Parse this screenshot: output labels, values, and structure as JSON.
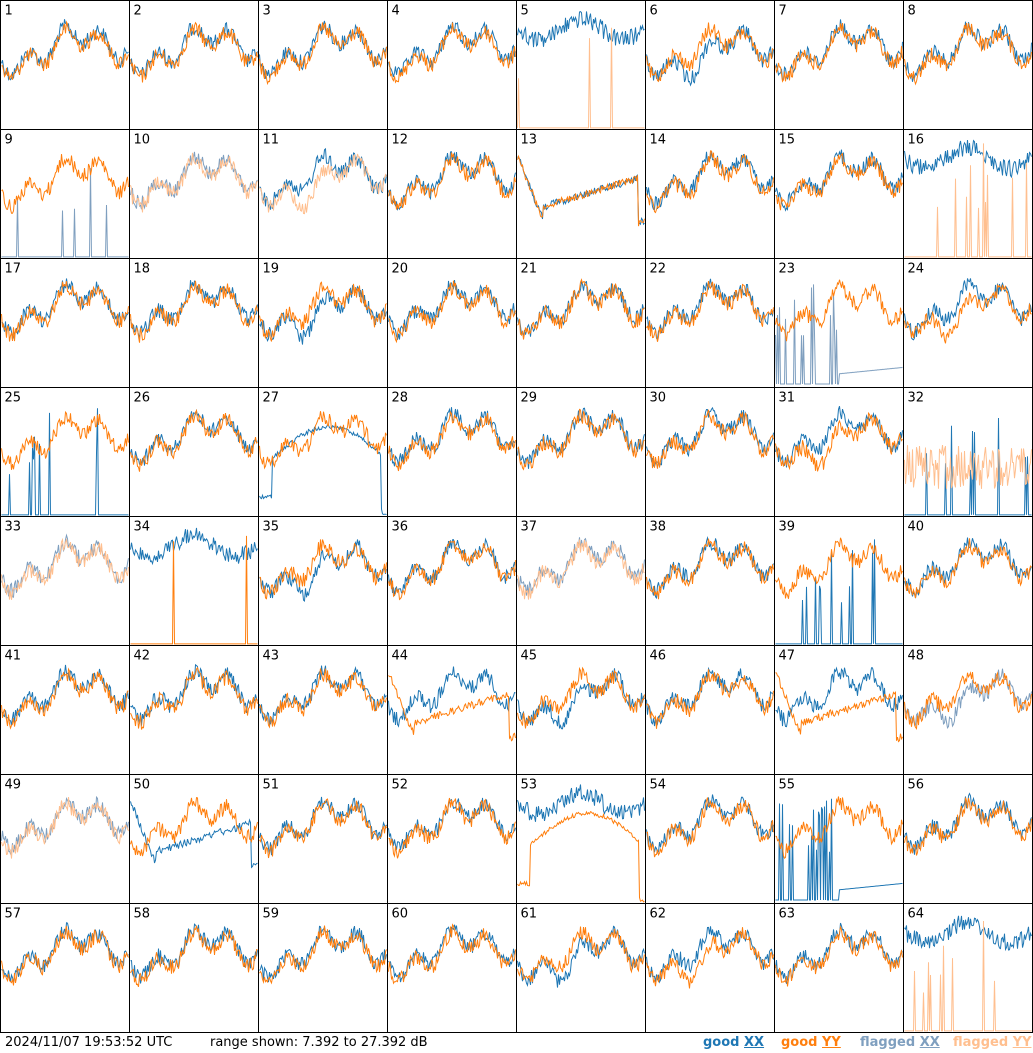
{
  "footer": {
    "timestamp": "2024/11/07 19:53:52 UTC",
    "range_text": "range shown: 7.392 to 27.392 dB"
  },
  "legend": [
    {
      "key": "good_xx",
      "word": "good",
      "pol": "XX",
      "color": "#1f77b4"
    },
    {
      "key": "good_yy",
      "word": "good",
      "pol": "YY",
      "color": "#ff7f0e"
    },
    {
      "key": "flagged_xx",
      "word": "flagged",
      "pol": "XX",
      "color": "#7f9fbf"
    },
    {
      "key": "flagged_yy",
      "word": "flagged",
      "pol": "YY",
      "color": "#ffbf8f"
    }
  ],
  "colors": {
    "good_xx": "#1f77b4",
    "good_yy": "#ff7f0e",
    "flagged_xx": "#7f9fbf",
    "flagged_yy": "#ffbf8f"
  },
  "chart_data": {
    "type": "line",
    "grid": {
      "rows": 8,
      "cols": 8
    },
    "ylim": [
      7.392,
      27.392
    ],
    "y_unit": "dB",
    "panels": [
      {
        "id": 1,
        "xx": "good",
        "yy": "good",
        "xx_shape": "normal",
        "yy_shape": "normal"
      },
      {
        "id": 2,
        "xx": "good",
        "yy": "good",
        "xx_shape": "normal",
        "yy_shape": "normal"
      },
      {
        "id": 3,
        "xx": "good",
        "yy": "good",
        "xx_shape": "normal",
        "yy_shape": "normal"
      },
      {
        "id": 4,
        "xx": "good",
        "yy": "good",
        "xx_shape": "normal",
        "yy_shape": "normal"
      },
      {
        "id": 5,
        "xx": "good",
        "yy": "flagged",
        "xx_shape": "high",
        "yy_shape": "spikes"
      },
      {
        "id": 6,
        "xx": "good",
        "yy": "good",
        "xx_shape": "deepdip",
        "yy_shape": "normal"
      },
      {
        "id": 7,
        "xx": "good",
        "yy": "good",
        "xx_shape": "normal",
        "yy_shape": "normal"
      },
      {
        "id": 8,
        "xx": "good",
        "yy": "good",
        "xx_shape": "normal",
        "yy_shape": "normal"
      },
      {
        "id": 9,
        "xx": "flagged",
        "yy": "good",
        "xx_shape": "spikes",
        "yy_shape": "normal"
      },
      {
        "id": 10,
        "xx": "flagged",
        "yy": "flagged",
        "xx_shape": "normal",
        "yy_shape": "normal"
      },
      {
        "id": 11,
        "xx": "good",
        "yy": "flagged",
        "xx_shape": "normal",
        "yy_shape": "deepdip"
      },
      {
        "id": 12,
        "xx": "good",
        "yy": "good",
        "xx_shape": "normal",
        "yy_shape": "normal"
      },
      {
        "id": 13,
        "xx": "good",
        "yy": "good",
        "xx_shape": "ramp",
        "yy_shape": "ramp"
      },
      {
        "id": 14,
        "xx": "good",
        "yy": "good",
        "xx_shape": "normal",
        "yy_shape": "normal"
      },
      {
        "id": 15,
        "xx": "good",
        "yy": "good",
        "xx_shape": "normal",
        "yy_shape": "normal"
      },
      {
        "id": 16,
        "xx": "good",
        "yy": "flagged",
        "xx_shape": "high",
        "yy_shape": "spikes"
      },
      {
        "id": 17,
        "xx": "good",
        "yy": "good",
        "xx_shape": "normal",
        "yy_shape": "normal"
      },
      {
        "id": 18,
        "xx": "good",
        "yy": "good",
        "xx_shape": "normal",
        "yy_shape": "normal"
      },
      {
        "id": 19,
        "xx": "good",
        "yy": "good",
        "xx_shape": "deepdip",
        "yy_shape": "normal"
      },
      {
        "id": 20,
        "xx": "good",
        "yy": "good",
        "xx_shape": "normal",
        "yy_shape": "normal"
      },
      {
        "id": 21,
        "xx": "good",
        "yy": "good",
        "xx_shape": "normal",
        "yy_shape": "normal"
      },
      {
        "id": 22,
        "xx": "good",
        "yy": "good",
        "xx_shape": "normal",
        "yy_shape": "normal"
      },
      {
        "id": 23,
        "xx": "flagged",
        "yy": "good",
        "xx_shape": "lowdecay",
        "yy_shape": "normal"
      },
      {
        "id": 24,
        "xx": "good",
        "yy": "good",
        "xx_shape": "normal",
        "yy_shape": "deepdip"
      },
      {
        "id": 25,
        "xx": "good",
        "yy": "good",
        "xx_shape": "spikes",
        "yy_shape": "normal"
      },
      {
        "id": 26,
        "xx": "good",
        "yy": "good",
        "xx_shape": "normal",
        "yy_shape": "normal"
      },
      {
        "id": 27,
        "xx": "good",
        "yy": "good",
        "xx_shape": "arch",
        "yy_shape": "normal"
      },
      {
        "id": 28,
        "xx": "good",
        "yy": "good",
        "xx_shape": "normal",
        "yy_shape": "normal"
      },
      {
        "id": 29,
        "xx": "good",
        "yy": "good",
        "xx_shape": "normal",
        "yy_shape": "normal"
      },
      {
        "id": 30,
        "xx": "good",
        "yy": "good",
        "xx_shape": "normal",
        "yy_shape": "normal"
      },
      {
        "id": 31,
        "xx": "good",
        "yy": "good",
        "xx_shape": "normal",
        "yy_shape": "deepdip"
      },
      {
        "id": 32,
        "xx": "good",
        "yy": "flagged",
        "xx_shape": "spikes",
        "yy_shape": "noisy"
      },
      {
        "id": 33,
        "xx": "flagged",
        "yy": "flagged",
        "xx_shape": "normal",
        "yy_shape": "normal"
      },
      {
        "id": 34,
        "xx": "good",
        "yy": "good",
        "xx_shape": "high",
        "yy_shape": "spikes"
      },
      {
        "id": 35,
        "xx": "good",
        "yy": "good",
        "xx_shape": "deepdip",
        "yy_shape": "normal"
      },
      {
        "id": 36,
        "xx": "good",
        "yy": "good",
        "xx_shape": "normal",
        "yy_shape": "normal"
      },
      {
        "id": 37,
        "xx": "flagged",
        "yy": "flagged",
        "xx_shape": "normal",
        "yy_shape": "normal"
      },
      {
        "id": 38,
        "xx": "good",
        "yy": "good",
        "xx_shape": "normal",
        "yy_shape": "normal"
      },
      {
        "id": 39,
        "xx": "good",
        "yy": "good",
        "xx_shape": "spikes",
        "yy_shape": "normal"
      },
      {
        "id": 40,
        "xx": "good",
        "yy": "good",
        "xx_shape": "normal",
        "yy_shape": "normal"
      },
      {
        "id": 41,
        "xx": "good",
        "yy": "good",
        "xx_shape": "normal",
        "yy_shape": "normal"
      },
      {
        "id": 42,
        "xx": "good",
        "yy": "good",
        "xx_shape": "normal",
        "yy_shape": "normal"
      },
      {
        "id": 43,
        "xx": "good",
        "yy": "good",
        "xx_shape": "normal",
        "yy_shape": "normal"
      },
      {
        "id": 44,
        "xx": "good",
        "yy": "good",
        "xx_shape": "normal",
        "yy_shape": "ramp"
      },
      {
        "id": 45,
        "xx": "good",
        "yy": "good",
        "xx_shape": "deepdip",
        "yy_shape": "normal"
      },
      {
        "id": 46,
        "xx": "good",
        "yy": "good",
        "xx_shape": "normal",
        "yy_shape": "normal"
      },
      {
        "id": 47,
        "xx": "good",
        "yy": "good",
        "xx_shape": "normal",
        "yy_shape": "ramp"
      },
      {
        "id": 48,
        "xx": "flagged",
        "yy": "good",
        "xx_shape": "deepdip",
        "yy_shape": "normal"
      },
      {
        "id": 49,
        "xx": "flagged",
        "yy": "flagged",
        "xx_shape": "normal",
        "yy_shape": "normal"
      },
      {
        "id": 50,
        "xx": "good",
        "yy": "good",
        "xx_shape": "ramp",
        "yy_shape": "normal"
      },
      {
        "id": 51,
        "xx": "good",
        "yy": "good",
        "xx_shape": "normal",
        "yy_shape": "normal"
      },
      {
        "id": 52,
        "xx": "good",
        "yy": "good",
        "xx_shape": "normal",
        "yy_shape": "normal"
      },
      {
        "id": 53,
        "xx": "good",
        "yy": "good",
        "xx_shape": "high",
        "yy_shape": "arch"
      },
      {
        "id": 54,
        "xx": "good",
        "yy": "good",
        "xx_shape": "normal",
        "yy_shape": "normal"
      },
      {
        "id": 55,
        "xx": "good",
        "yy": "good",
        "xx_shape": "lowdecay",
        "yy_shape": "normal"
      },
      {
        "id": 56,
        "xx": "good",
        "yy": "good",
        "xx_shape": "normal",
        "yy_shape": "normal"
      },
      {
        "id": 57,
        "xx": "good",
        "yy": "good",
        "xx_shape": "normal",
        "yy_shape": "normal"
      },
      {
        "id": 58,
        "xx": "good",
        "yy": "good",
        "xx_shape": "normal",
        "yy_shape": "normal"
      },
      {
        "id": 59,
        "xx": "good",
        "yy": "good",
        "xx_shape": "normal",
        "yy_shape": "normal"
      },
      {
        "id": 60,
        "xx": "good",
        "yy": "good",
        "xx_shape": "normal",
        "yy_shape": "normal"
      },
      {
        "id": 61,
        "xx": "good",
        "yy": "good",
        "xx_shape": "deepdip",
        "yy_shape": "normal"
      },
      {
        "id": 62,
        "xx": "good",
        "yy": "good",
        "xx_shape": "normal",
        "yy_shape": "deepdip"
      },
      {
        "id": 63,
        "xx": "good",
        "yy": "good",
        "xx_shape": "normal",
        "yy_shape": "normal"
      },
      {
        "id": 64,
        "xx": "good",
        "yy": "flagged",
        "xx_shape": "high",
        "yy_shape": "spikes"
      }
    ]
  }
}
